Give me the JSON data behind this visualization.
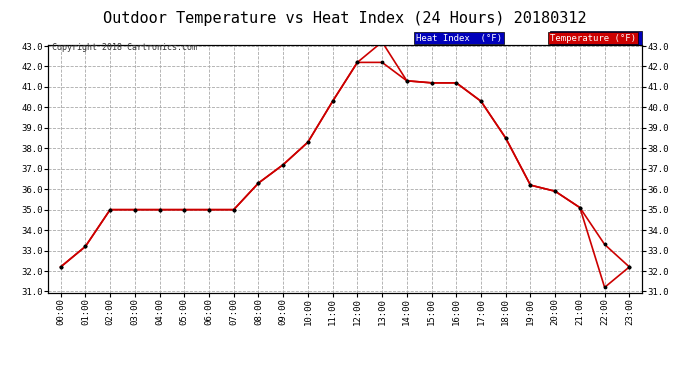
{
  "title": "Outdoor Temperature vs Heat Index (24 Hours) 20180312",
  "copyright": "Copyright 2018 Cartronics.com",
  "hours": [
    "00:00",
    "01:00",
    "02:00",
    "03:00",
    "04:00",
    "05:00",
    "06:00",
    "07:00",
    "08:00",
    "09:00",
    "10:00",
    "11:00",
    "12:00",
    "13:00",
    "14:00",
    "15:00",
    "16:00",
    "17:00",
    "18:00",
    "19:00",
    "20:00",
    "21:00",
    "22:00",
    "23:00"
  ],
  "temperature": [
    32.2,
    33.2,
    35.0,
    35.0,
    35.0,
    35.0,
    35.0,
    35.0,
    36.3,
    37.2,
    38.3,
    40.3,
    42.2,
    42.2,
    41.3,
    41.2,
    41.2,
    40.3,
    38.5,
    36.2,
    35.9,
    35.1,
    33.3,
    32.2
  ],
  "heat_index": [
    32.2,
    33.2,
    35.0,
    35.0,
    35.0,
    35.0,
    35.0,
    35.0,
    36.3,
    37.2,
    38.3,
    40.3,
    42.2,
    43.2,
    41.3,
    41.2,
    41.2,
    40.3,
    38.5,
    36.2,
    35.9,
    35.1,
    31.2,
    32.2
  ],
  "ylim": [
    31.0,
    43.0
  ],
  "yticks": [
    31.0,
    32.0,
    33.0,
    34.0,
    35.0,
    36.0,
    37.0,
    38.0,
    39.0,
    40.0,
    41.0,
    42.0,
    43.0
  ],
  "line_color": "#cc0000",
  "marker_color": "#000000",
  "bg_color": "#ffffff",
  "plot_bg_color": "#ffffff",
  "grid_color": "#aaaaaa",
  "title_fontsize": 11,
  "legend_heat_bg": "#0000bb",
  "legend_temp_bg": "#cc0000",
  "legend_text_color": "#ffffff"
}
